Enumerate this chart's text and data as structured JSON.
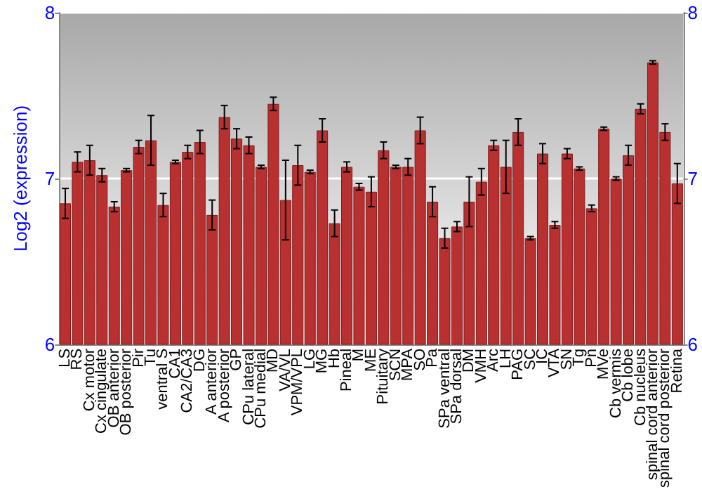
{
  "chart_data": {
    "type": "bar",
    "ylabel": "Log2 (expression)",
    "categories": [
      "LS",
      "RS",
      "Cx motor",
      "Cx cingulate",
      "OB anterior",
      "OB posterior",
      "Pir",
      "Tu",
      "ventral S",
      "CA1",
      "CA2/CA3",
      "DG",
      "A anterior",
      "A posterior",
      "GP",
      "CPu lateral",
      "CPu medial",
      "MD",
      "VA/VL",
      "VPM/VPL",
      "LG",
      "MG",
      "Hb",
      "Pineal",
      "M",
      "ME",
      "Pituitary",
      "SCN",
      "MPA",
      "SO",
      "Pa",
      "SPa ventral",
      "SPa dorsal",
      "DM",
      "VMH",
      "Arc",
      "LH",
      "PAG",
      "SC",
      "IC",
      "VTA",
      "SN",
      "Tg",
      "Pn",
      "MVe",
      "Cb vermis",
      "Cb lobe",
      "Cb nucleus",
      "spinal cord anterior",
      "spinal cord posterior",
      "Retina"
    ],
    "values": [
      6.85,
      7.1,
      7.11,
      7.02,
      6.83,
      7.05,
      7.19,
      7.23,
      6.84,
      7.1,
      7.16,
      7.22,
      6.78,
      7.37,
      7.24,
      7.2,
      7.07,
      7.45,
      6.87,
      7.08,
      7.04,
      7.29,
      6.73,
      7.07,
      6.95,
      6.92,
      7.17,
      7.07,
      7.07,
      7.29,
      6.86,
      6.64,
      6.71,
      6.86,
      6.98,
      7.2,
      7.07,
      7.28,
      6.64,
      7.15,
      6.72,
      7.15,
      7.06,
      6.82,
      7.3,
      7.0,
      7.14,
      7.42,
      7.7,
      7.28,
      6.97
    ],
    "errors": [
      0.09,
      0.06,
      0.09,
      0.04,
      0.03,
      0.01,
      0.04,
      0.15,
      0.07,
      0.01,
      0.04,
      0.07,
      0.09,
      0.07,
      0.06,
      0.05,
      0.01,
      0.04,
      0.24,
      0.12,
      0.01,
      0.07,
      0.08,
      0.03,
      0.02,
      0.09,
      0.05,
      0.01,
      0.05,
      0.08,
      0.09,
      0.06,
      0.03,
      0.15,
      0.08,
      0.03,
      0.16,
      0.08,
      0.01,
      0.06,
      0.02,
      0.03,
      0.01,
      0.02,
      0.01,
      0.01,
      0.06,
      0.03,
      0.01,
      0.05,
      0.12
    ],
    "color": "#b93030",
    "ylim": [
      6,
      8
    ],
    "yticks": [
      6,
      7,
      8
    ],
    "y2lim": [
      6,
      8
    ],
    "y2ticks": [
      6,
      7,
      8
    ],
    "grid": "y"
  }
}
